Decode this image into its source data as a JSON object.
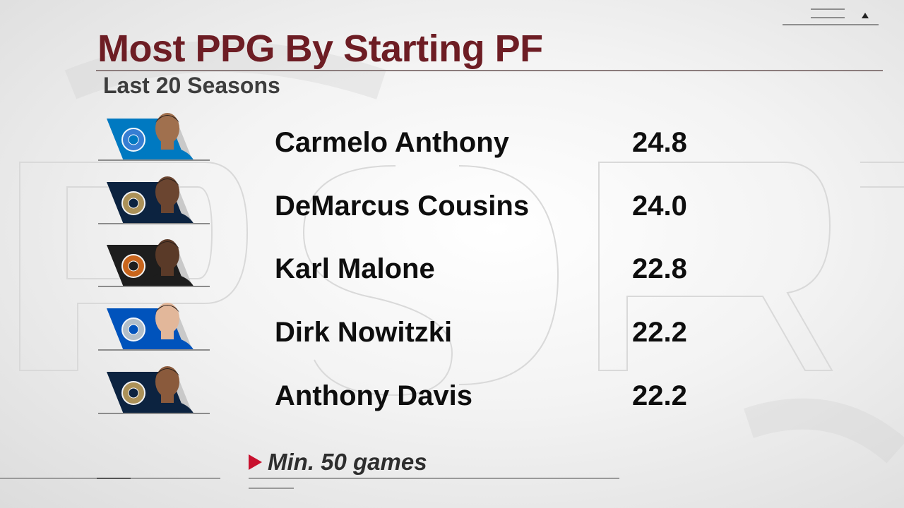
{
  "header": {
    "title": "Most PPG By Starting PF",
    "subtitle": "Last 20 Seasons"
  },
  "players": [
    {
      "name": "Carmelo Anthony",
      "ppg": "24.8",
      "team_logo": "okc-thunder-logo",
      "team_color": "#0079c1",
      "accent": "#3a7fd5",
      "skin": "#a0704e"
    },
    {
      "name": "DeMarcus Cousins",
      "ppg": "24.0",
      "team_logo": "new-orleans-pelicans-logo",
      "team_color": "#0c2340",
      "accent": "#b4975a",
      "skin": "#6b4530"
    },
    {
      "name": "Karl Malone",
      "ppg": "22.8",
      "team_logo": "basketball-hall-of-fame-logo",
      "team_color": "#1d1d1d",
      "accent": "#d2691e",
      "skin": "#5a3a28"
    },
    {
      "name": "Dirk Nowitzki",
      "ppg": "22.2",
      "team_logo": "dallas-mavericks-logo",
      "team_color": "#0053bc",
      "accent": "#bbc4ca",
      "skin": "#e2b79a"
    },
    {
      "name": "Anthony Davis",
      "ppg": "22.2",
      "team_logo": "new-orleans-pelicans-logo",
      "team_color": "#0c2340",
      "accent": "#b4975a",
      "skin": "#8a5a3c"
    }
  ],
  "footnote": "Min. 50 games",
  "colors": {
    "title": "#6d1d24",
    "note_arrow": "#c8102e",
    "text": "#0e0e0e"
  }
}
